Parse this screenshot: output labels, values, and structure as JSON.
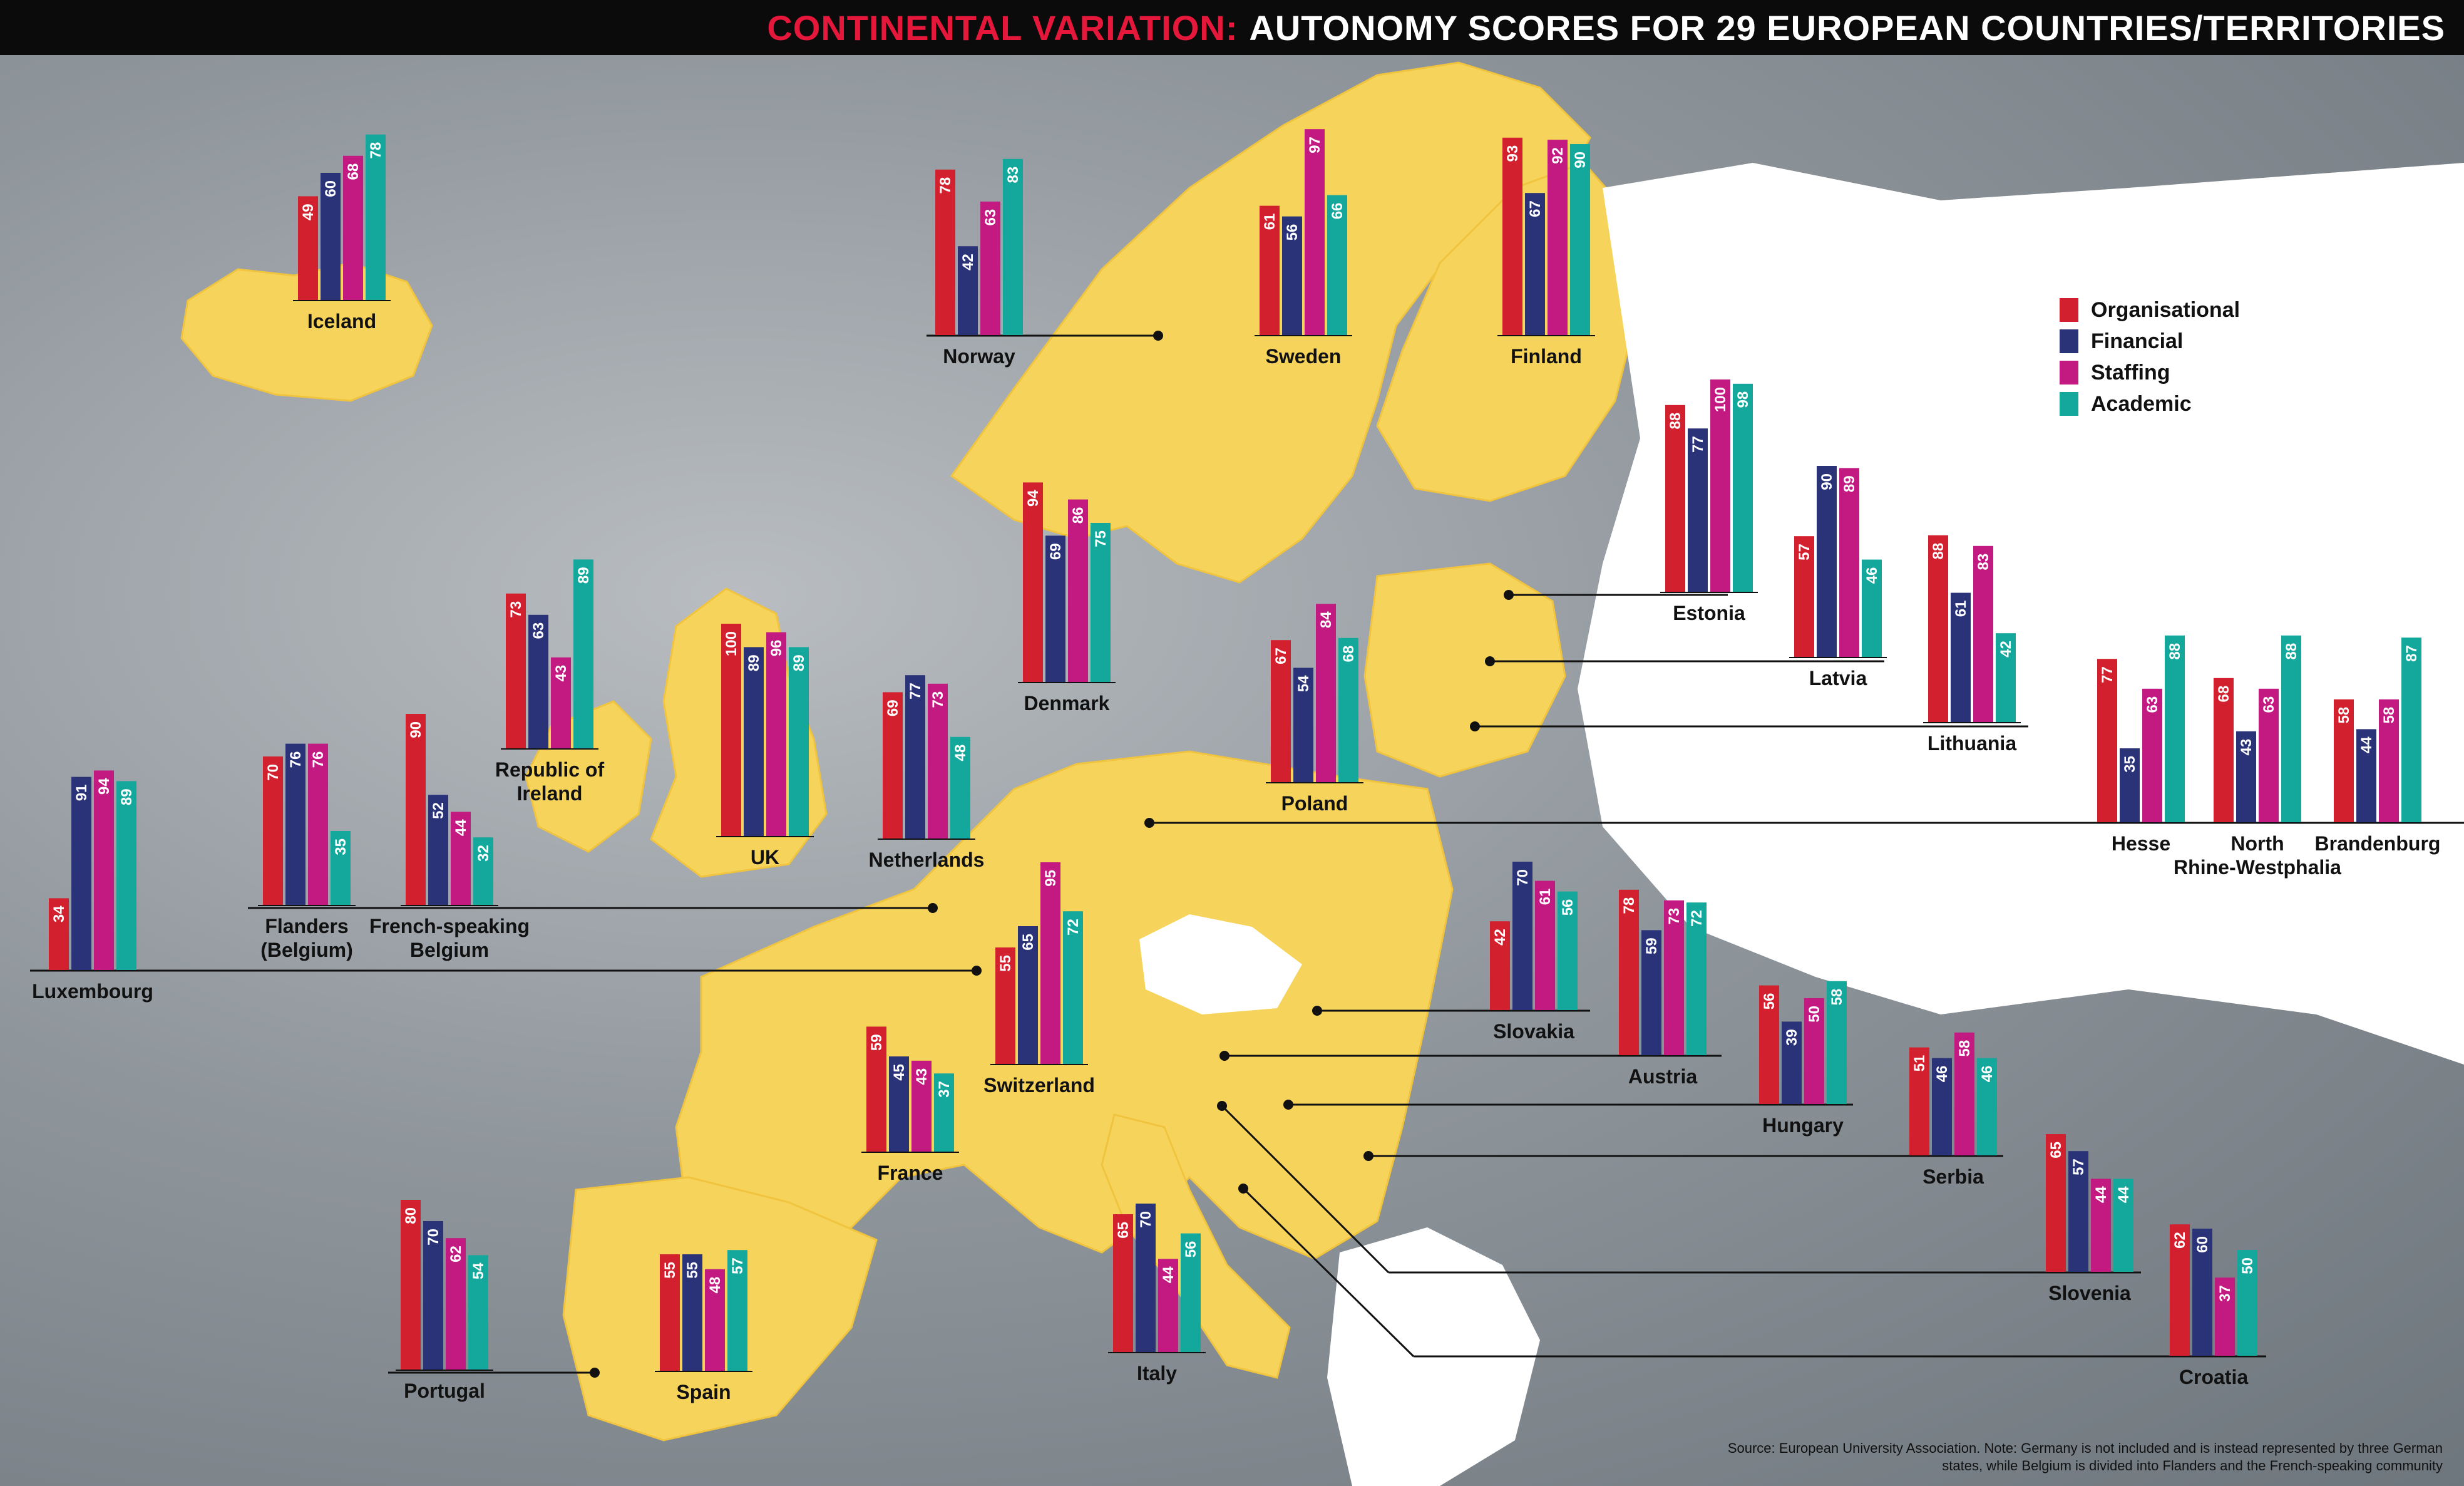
{
  "header": {
    "title_accent": "CONTINENTAL VARIATION:",
    "title_main": "AUTONOMY SCORES FOR 29 EUROPEAN COUNTRIES/TERRITORIES"
  },
  "colors": {
    "organisational": "#d3202e",
    "financial": "#2b3378",
    "staffing": "#c21a80",
    "academic": "#13a89b",
    "map_land": "#f6d35a",
    "map_other": "#ffffff",
    "title_accent": "#e5173a"
  },
  "legend": {
    "items": [
      {
        "label": "Organisational",
        "color": "#d3202e"
      },
      {
        "label": "Financial",
        "color": "#2b3378"
      },
      {
        "label": "Staffing",
        "color": "#c21a80"
      },
      {
        "label": "Academic",
        "color": "#13a89b"
      }
    ]
  },
  "source": "Source: European University Association. Note: Germany is not included and is instead represented by three German states, while Belgium is divided into Flanders and the French-speaking community",
  "chart_data": {
    "type": "bar",
    "title": "AUTONOMY SCORES FOR 29 EUROPEAN COUNTRIES/TERRITORIES",
    "series_names": [
      "Organisational",
      "Financial",
      "Staffing",
      "Academic"
    ],
    "ylim": [
      0,
      100
    ],
    "groups": [
      {
        "name": "Iceland",
        "values": [
          49,
          60,
          68,
          78
        ]
      },
      {
        "name": "Norway",
        "values": [
          78,
          42,
          63,
          83
        ]
      },
      {
        "name": "Sweden",
        "values": [
          61,
          56,
          97,
          66
        ]
      },
      {
        "name": "Finland",
        "values": [
          93,
          67,
          92,
          90
        ]
      },
      {
        "name": "Denmark",
        "values": [
          94,
          69,
          86,
          75
        ]
      },
      {
        "name": "Estonia",
        "values": [
          88,
          77,
          100,
          98
        ]
      },
      {
        "name": "Latvia",
        "values": [
          57,
          90,
          89,
          46
        ]
      },
      {
        "name": "Lithuania",
        "values": [
          88,
          61,
          83,
          42
        ]
      },
      {
        "name": "Republic of Ireland",
        "values": [
          73,
          63,
          43,
          89
        ]
      },
      {
        "name": "UK",
        "values": [
          100,
          89,
          96,
          89
        ]
      },
      {
        "name": "Netherlands",
        "values": [
          69,
          77,
          73,
          48
        ]
      },
      {
        "name": "Poland",
        "values": [
          67,
          54,
          84,
          68
        ]
      },
      {
        "name": "Hesse",
        "values": [
          77,
          35,
          63,
          88
        ]
      },
      {
        "name": "North Rhine-Westphalia",
        "values": [
          68,
          43,
          63,
          88
        ]
      },
      {
        "name": "Brandenburg",
        "values": [
          58,
          44,
          58,
          87
        ]
      },
      {
        "name": "Luxembourg",
        "values": [
          34,
          91,
          94,
          89
        ]
      },
      {
        "name": "Flanders (Belgium)",
        "values": [
          70,
          76,
          76,
          35
        ]
      },
      {
        "name": "French-speaking Belgium",
        "values": [
          90,
          52,
          44,
          32
        ]
      },
      {
        "name": "Switzerland",
        "values": [
          55,
          65,
          95,
          72
        ]
      },
      {
        "name": "France",
        "values": [
          59,
          45,
          43,
          37
        ]
      },
      {
        "name": "Slovakia",
        "values": [
          42,
          70,
          61,
          56
        ]
      },
      {
        "name": "Austria",
        "values": [
          78,
          59,
          73,
          72
        ]
      },
      {
        "name": "Hungary",
        "values": [
          56,
          39,
          50,
          58
        ]
      },
      {
        "name": "Serbia",
        "values": [
          51,
          46,
          58,
          46
        ]
      },
      {
        "name": "Slovenia",
        "values": [
          65,
          57,
          44,
          44
        ]
      },
      {
        "name": "Croatia",
        "values": [
          62,
          60,
          37,
          50
        ]
      },
      {
        "name": "Portugal",
        "values": [
          80,
          70,
          62,
          54
        ]
      },
      {
        "name": "Spain",
        "values": [
          55,
          55,
          48,
          57
        ]
      },
      {
        "name": "Italy",
        "values": [
          65,
          70,
          44,
          56
        ]
      }
    ]
  }
}
